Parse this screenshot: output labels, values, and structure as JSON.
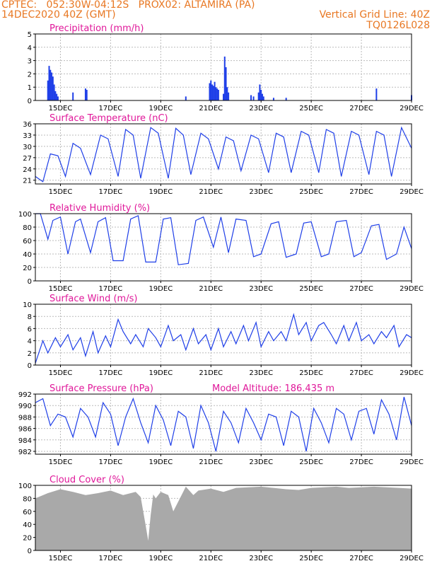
{
  "header": {
    "line1_left": "CPTEC:   052:30W-04:12S   PROX02: ALTAMIRA (PA)",
    "line2_left": "14DEC2020 40Z (GMT)",
    "line2_right": "Vertical Grid Line: 40Z",
    "line3_right": "TQ0126L028"
  },
  "x_axis": {
    "ticks": [
      "15DEC",
      "17DEC",
      "19DEC",
      "21DEC",
      "23DEC",
      "25DEC",
      "27DEC",
      "29DEC"
    ],
    "tick_days": [
      1,
      3,
      5,
      7,
      9,
      11,
      13,
      15
    ],
    "range_days": [
      0,
      15
    ]
  },
  "colors": {
    "series": "#1f3fe8",
    "cloud": "#a9a9a9",
    "title": "#e0189a",
    "header": "#e87722",
    "grid": "#bbbbbb"
  },
  "chart_data": [
    {
      "type": "bar",
      "title": "Precipitation (mm/h)",
      "ylim": [
        0,
        5
      ],
      "yticks": [
        0,
        1,
        2,
        3,
        4,
        5
      ],
      "series": [
        {
          "x": [
            0.5,
            0.55,
            0.6,
            0.65,
            0.7,
            0.75,
            0.8,
            0.85,
            0.9,
            1.5,
            2.0,
            2.05,
            6.0,
            6.95,
            7.0,
            7.05,
            7.1,
            7.15,
            7.2,
            7.25,
            7.3,
            7.5,
            7.55,
            7.6,
            7.65,
            7.7,
            8.6,
            8.7,
            8.9,
            8.95,
            9.0,
            9.05,
            9.1,
            9.5,
            10.0,
            13.6,
            15.0
          ],
          "values": [
            1.5,
            2.6,
            2.3,
            2.1,
            1.8,
            1.2,
            0.7,
            0.5,
            0.3,
            0.6,
            0.9,
            0.8,
            0.3,
            1.3,
            1.5,
            1.2,
            1.1,
            1.4,
            1.0,
            0.9,
            0.8,
            0.5,
            3.3,
            2.5,
            1.0,
            0.6,
            0.4,
            0.3,
            0.6,
            1.2,
            0.8,
            0.5,
            0.3,
            0.2,
            0.2,
            0.9,
            0.4
          ]
        }
      ]
    },
    {
      "type": "line",
      "title": "Surface Temperature (nC)",
      "ylim": [
        20,
        36
      ],
      "yticks": [
        21,
        24,
        27,
        30,
        33,
        36
      ],
      "series": [
        {
          "x": [
            0,
            0.3,
            0.6,
            0.9,
            1.2,
            1.5,
            1.8,
            2.2,
            2.6,
            2.9,
            3.3,
            3.6,
            3.9,
            4.2,
            4.6,
            4.9,
            5.3,
            5.6,
            5.9,
            6.2,
            6.6,
            6.9,
            7.3,
            7.6,
            7.9,
            8.2,
            8.6,
            8.9,
            9.3,
            9.6,
            9.9,
            10.2,
            10.6,
            10.9,
            11.3,
            11.6,
            11.9,
            12.2,
            12.6,
            12.9,
            13.3,
            13.6,
            13.9,
            14.2,
            14.6,
            15.0
          ],
          "values": [
            22,
            20.6,
            28.0,
            27.5,
            22.0,
            30.8,
            29.5,
            22.5,
            33.0,
            32.0,
            22.0,
            34.5,
            33.0,
            21.5,
            35.0,
            33.5,
            21.5,
            34.8,
            33.0,
            22.5,
            33.5,
            32.0,
            24.0,
            32.5,
            31.5,
            23.5,
            33.0,
            32.0,
            23.0,
            33.5,
            32.5,
            23.0,
            34.0,
            33.0,
            23.0,
            34.5,
            33.5,
            22.0,
            34.0,
            33.0,
            22.5,
            34.0,
            33.0,
            22.0,
            35.0,
            29.5
          ]
        }
      ]
    },
    {
      "type": "line",
      "title": "Relative Humidity (%)",
      "ylim": [
        0,
        100
      ],
      "yticks": [
        0,
        20,
        40,
        60,
        80,
        100
      ],
      "series": [
        {
          "x": [
            0,
            0.2,
            0.5,
            0.7,
            1.0,
            1.3,
            1.6,
            1.8,
            2.2,
            2.5,
            2.8,
            3.1,
            3.5,
            3.8,
            4.1,
            4.4,
            4.8,
            5.1,
            5.4,
            5.7,
            6.1,
            6.4,
            6.7,
            7.1,
            7.4,
            7.7,
            8.0,
            8.4,
            8.7,
            9.0,
            9.4,
            9.7,
            10.0,
            10.4,
            10.7,
            11.0,
            11.4,
            11.7,
            12.0,
            12.4,
            12.7,
            13.0,
            13.4,
            13.7,
            14.0,
            14.4,
            14.7,
            15.0
          ],
          "values": [
            100,
            100,
            62,
            90,
            95,
            40,
            88,
            92,
            42,
            88,
            94,
            30,
            30,
            92,
            97,
            28,
            28,
            92,
            94,
            24,
            26,
            90,
            95,
            50,
            95,
            42,
            92,
            90,
            36,
            40,
            85,
            88,
            35,
            40,
            86,
            88,
            36,
            40,
            88,
            90,
            36,
            42,
            82,
            84,
            32,
            40,
            80,
            48
          ]
        }
      ]
    },
    {
      "type": "line",
      "title": "Surface Wind (m/s)",
      "ylim": [
        0,
        10
      ],
      "yticks": [
        0,
        2,
        4,
        6,
        8,
        10
      ],
      "series": [
        {
          "x": [
            0,
            0.3,
            0.5,
            0.8,
            1.0,
            1.3,
            1.5,
            1.8,
            2.0,
            2.3,
            2.5,
            2.8,
            3.0,
            3.3,
            3.5,
            3.8,
            4.0,
            4.3,
            4.5,
            4.8,
            5.0,
            5.3,
            5.5,
            5.8,
            6.0,
            6.3,
            6.5,
            6.8,
            7.0,
            7.3,
            7.5,
            7.8,
            8.0,
            8.3,
            8.5,
            8.8,
            9.0,
            9.3,
            9.5,
            9.8,
            10.0,
            10.3,
            10.5,
            10.8,
            11.0,
            11.3,
            11.5,
            11.8,
            12.0,
            12.3,
            12.5,
            12.8,
            13.0,
            13.3,
            13.5,
            13.8,
            14.0,
            14.3,
            14.5,
            14.8,
            15.0
          ],
          "values": [
            0.3,
            4.0,
            2.0,
            4.5,
            3.0,
            5.0,
            2.5,
            4.5,
            1.5,
            5.5,
            2.0,
            4.8,
            3.0,
            7.5,
            5.5,
            3.5,
            5.0,
            3.0,
            6.0,
            4.5,
            3.0,
            6.5,
            4.0,
            5.0,
            2.5,
            6.0,
            3.5,
            5.0,
            2.5,
            6.0,
            3.0,
            5.5,
            3.5,
            6.5,
            4.0,
            7.0,
            3.0,
            5.5,
            4.0,
            5.5,
            4.0,
            8.3,
            5.0,
            7.0,
            4.0,
            6.5,
            7.0,
            5.0,
            3.5,
            6.5,
            4.0,
            7.0,
            4.0,
            5.0,
            3.5,
            5.5,
            4.5,
            6.5,
            3.0,
            5.0,
            4.5
          ]
        }
      ]
    },
    {
      "type": "line",
      "title": "Surface Pressure (hPa)",
      "subtitle": "Model Altitude: 186.435 m",
      "ylim": [
        981.5,
        992
      ],
      "yticks": [
        982,
        984,
        986,
        988,
        990,
        992
      ],
      "series": [
        {
          "x": [
            0,
            0.3,
            0.6,
            0.9,
            1.2,
            1.5,
            1.8,
            2.1,
            2.4,
            2.7,
            3.0,
            3.3,
            3.6,
            3.9,
            4.2,
            4.5,
            4.8,
            5.1,
            5.4,
            5.7,
            6.0,
            6.3,
            6.6,
            6.9,
            7.2,
            7.5,
            7.8,
            8.1,
            8.4,
            8.7,
            9.0,
            9.3,
            9.6,
            9.9,
            10.2,
            10.5,
            10.8,
            11.1,
            11.4,
            11.7,
            12.0,
            12.3,
            12.6,
            12.9,
            13.2,
            13.5,
            13.8,
            14.1,
            14.4,
            14.7,
            15.0
          ],
          "values": [
            990.5,
            991.2,
            986.5,
            988.5,
            988.0,
            984.5,
            989.5,
            988.0,
            984.5,
            990.5,
            988.5,
            983.0,
            988.0,
            991.2,
            987.0,
            983.5,
            990.0,
            987.5,
            983.0,
            989.0,
            988.0,
            982.5,
            990.0,
            987.0,
            982.0,
            989.0,
            987.0,
            983.5,
            989.5,
            987.0,
            984.0,
            988.5,
            988.0,
            983.0,
            989.0,
            988.0,
            982.0,
            989.5,
            987.0,
            983.5,
            989.5,
            988.5,
            984.0,
            989.0,
            989.5,
            985.0,
            991.0,
            988.5,
            984.0,
            991.5,
            986.5
          ]
        }
      ]
    },
    {
      "type": "area",
      "title": "Cloud Cover (%)",
      "ylim": [
        0,
        100
      ],
      "yticks": [
        0,
        20,
        40,
        60,
        80,
        100
      ],
      "series": [
        {
          "x": [
            0,
            0.5,
            1.0,
            1.5,
            2.0,
            2.5,
            3.0,
            3.5,
            4.0,
            4.2,
            4.3,
            4.4,
            4.5,
            4.6,
            4.7,
            4.8,
            5.0,
            5.3,
            5.5,
            6.0,
            6.3,
            6.5,
            7.0,
            7.5,
            8.0,
            8.5,
            9.0,
            9.5,
            10.0,
            10.5,
            11.0,
            11.5,
            12.0,
            12.5,
            13.0,
            13.5,
            14.0,
            14.5,
            15.0
          ],
          "values": [
            80,
            88,
            94,
            90,
            85,
            88,
            92,
            85,
            90,
            82,
            60,
            38,
            15,
            55,
            86,
            80,
            90,
            85,
            60,
            98,
            85,
            92,
            95,
            90,
            96,
            97,
            98,
            96,
            94,
            93,
            96,
            97,
            98,
            96,
            97,
            98,
            97,
            96,
            95
          ]
        }
      ]
    }
  ]
}
